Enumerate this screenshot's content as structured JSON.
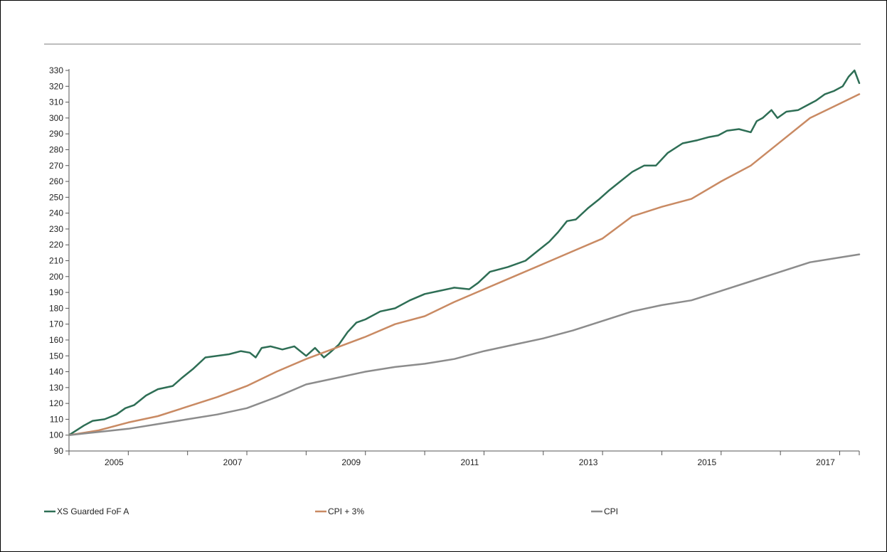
{
  "chart_data": {
    "type": "line",
    "title": "",
    "xlabel": "",
    "ylabel": "",
    "ylim": [
      90,
      330
    ],
    "xlim": [
      2004.0,
      2017.33
    ],
    "grid": false,
    "legend_position": "bottom",
    "y_ticks": [
      "90",
      "100",
      "110",
      "120",
      "130",
      "140",
      "150",
      "160",
      "170",
      "180",
      "190",
      "200",
      "210",
      "220",
      "230",
      "240",
      "250",
      "260",
      "270",
      "280",
      "290",
      "300",
      "310",
      "320",
      "330"
    ],
    "x_ticks": [
      "2005",
      "2007",
      "2009",
      "2011",
      "2013",
      "2015",
      "2017"
    ],
    "series": [
      {
        "name": "XS Guarded FoF A",
        "color": "#2e6e55",
        "x": [
          2004.0,
          2004.25,
          2004.4,
          2004.6,
          2004.8,
          2004.95,
          2005.1,
          2005.3,
          2005.5,
          2005.75,
          2005.9,
          2006.1,
          2006.3,
          2006.5,
          2006.7,
          2006.9,
          2007.05,
          2007.15,
          2007.25,
          2007.4,
          2007.6,
          2007.8,
          2008.0,
          2008.15,
          2008.3,
          2008.4,
          2008.55,
          2008.7,
          2008.85,
          2009.0,
          2009.25,
          2009.5,
          2009.75,
          2010.0,
          2010.25,
          2010.5,
          2010.75,
          2010.9,
          2011.1,
          2011.4,
          2011.7,
          2011.9,
          2012.1,
          2012.25,
          2012.4,
          2012.55,
          2012.75,
          2012.95,
          2013.1,
          2013.3,
          2013.5,
          2013.7,
          2013.9,
          2014.1,
          2014.35,
          2014.6,
          2014.8,
          2014.95,
          2015.1,
          2015.3,
          2015.5,
          2015.6,
          2015.7,
          2015.85,
          2015.95,
          2016.1,
          2016.3,
          2016.45,
          2016.6,
          2016.75,
          2016.9,
          2017.05,
          2017.15,
          2017.25,
          2017.33
        ],
        "values": [
          100,
          106,
          109,
          110,
          113,
          117,
          119,
          125,
          129,
          131,
          136,
          142,
          149,
          150,
          151,
          153,
          152,
          149,
          155,
          156,
          154,
          156,
          150,
          155,
          149,
          152,
          157,
          165,
          171,
          173,
          178,
          180,
          185,
          189,
          191,
          193,
          192,
          196,
          203,
          206,
          210,
          216,
          222,
          228,
          235,
          236,
          243,
          249,
          254,
          260,
          266,
          270,
          270,
          278,
          284,
          286,
          288,
          289,
          292,
          293,
          291,
          298,
          300,
          305,
          300,
          304,
          305,
          308,
          311,
          315,
          317,
          320,
          326,
          330,
          322
        ]
      },
      {
        "name": "CPI + 3%",
        "color": "#c98a63",
        "x": [
          2004.0,
          2004.5,
          2005.0,
          2005.5,
          2006.0,
          2006.5,
          2007.0,
          2007.5,
          2008.0,
          2008.5,
          2009.0,
          2009.5,
          2010.0,
          2010.5,
          2011.0,
          2011.5,
          2012.0,
          2012.5,
          2013.0,
          2013.5,
          2014.0,
          2014.5,
          2015.0,
          2015.5,
          2016.0,
          2016.5,
          2017.0,
          2017.33
        ],
        "values": [
          100,
          103,
          108,
          112,
          118,
          124,
          131,
          140,
          148,
          155,
          162,
          170,
          175,
          184,
          192,
          200,
          208,
          216,
          224,
          238,
          244,
          249,
          260,
          270,
          285,
          300,
          309,
          315
        ]
      },
      {
        "name": "CPI",
        "color": "#8c8c8c",
        "x": [
          2004.0,
          2004.5,
          2005.0,
          2005.5,
          2006.0,
          2006.5,
          2007.0,
          2007.5,
          2008.0,
          2008.5,
          2009.0,
          2009.5,
          2010.0,
          2010.5,
          2011.0,
          2011.5,
          2012.0,
          2012.5,
          2013.0,
          2013.5,
          2014.0,
          2014.5,
          2015.0,
          2015.5,
          2016.0,
          2016.5,
          2017.0,
          2017.33
        ],
        "values": [
          100,
          102,
          104,
          107,
          110,
          113,
          117,
          124,
          132,
          136,
          140,
          143,
          145,
          148,
          153,
          157,
          161,
          166,
          172,
          178,
          182,
          185,
          191,
          197,
          203,
          209,
          212,
          214
        ]
      }
    ]
  }
}
